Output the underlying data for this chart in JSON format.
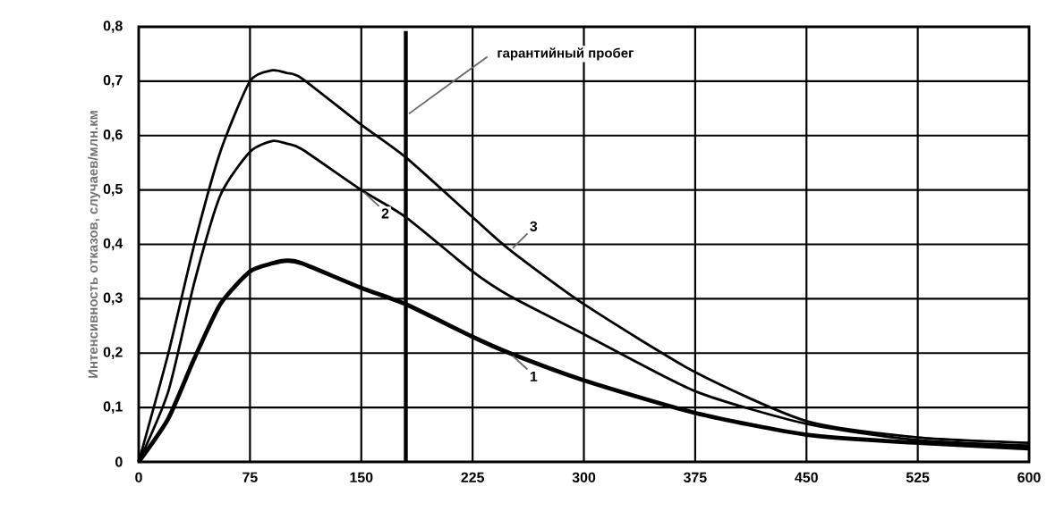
{
  "chart_data": {
    "type": "line",
    "ylabel": "Интенсивность отказов, случаев/млн.км",
    "x": [
      0,
      20,
      37.5,
      55,
      75,
      90,
      100,
      110,
      150,
      180,
      225,
      250,
      300,
      375,
      450,
      525,
      600
    ],
    "series": [
      {
        "name": "1",
        "color": "#000000",
        "values": [
          0,
          0.08,
          0.19,
          0.29,
          0.35,
          0.365,
          0.37,
          0.365,
          0.32,
          0.29,
          0.23,
          0.2,
          0.15,
          0.09,
          0.05,
          0.035,
          0.025
        ]
      },
      {
        "name": "2",
        "color": "#000000",
        "values": [
          0,
          0.13,
          0.33,
          0.49,
          0.57,
          0.59,
          0.585,
          0.575,
          0.5,
          0.45,
          0.35,
          0.305,
          0.235,
          0.13,
          0.07,
          0.04,
          0.03
        ]
      },
      {
        "name": "3",
        "color": "#000000",
        "values": [
          0,
          0.2,
          0.4,
          0.57,
          0.7,
          0.72,
          0.715,
          0.705,
          0.62,
          0.56,
          0.45,
          0.39,
          0.29,
          0.165,
          0.075,
          0.045,
          0.035
        ]
      }
    ],
    "xlim": [
      0,
      600
    ],
    "xticks": [
      0,
      75,
      150,
      225,
      300,
      375,
      450,
      525,
      600
    ],
    "ylim": [
      0,
      0.8
    ],
    "yticks": [
      0,
      {
        "value": 0.1,
        "label": "0,1"
      },
      {
        "value": 0.2,
        "label": "0,2"
      },
      {
        "value": 0.3,
        "label": "0,3"
      },
      {
        "value": 0.4,
        "label": "0,4"
      },
      {
        "value": 0.5,
        "label": "0,5"
      },
      {
        "value": 0.6,
        "label": "0,6"
      },
      {
        "value": 0.7,
        "label": "0,7"
      },
      {
        "value": 0.8,
        "label": "0,8"
      }
    ],
    "ref_lines": [
      {
        "axis": "x",
        "value": 180,
        "label": "гарантийный пробег",
        "color": "#000000"
      }
    ],
    "grid": true,
    "marker": "none"
  }
}
